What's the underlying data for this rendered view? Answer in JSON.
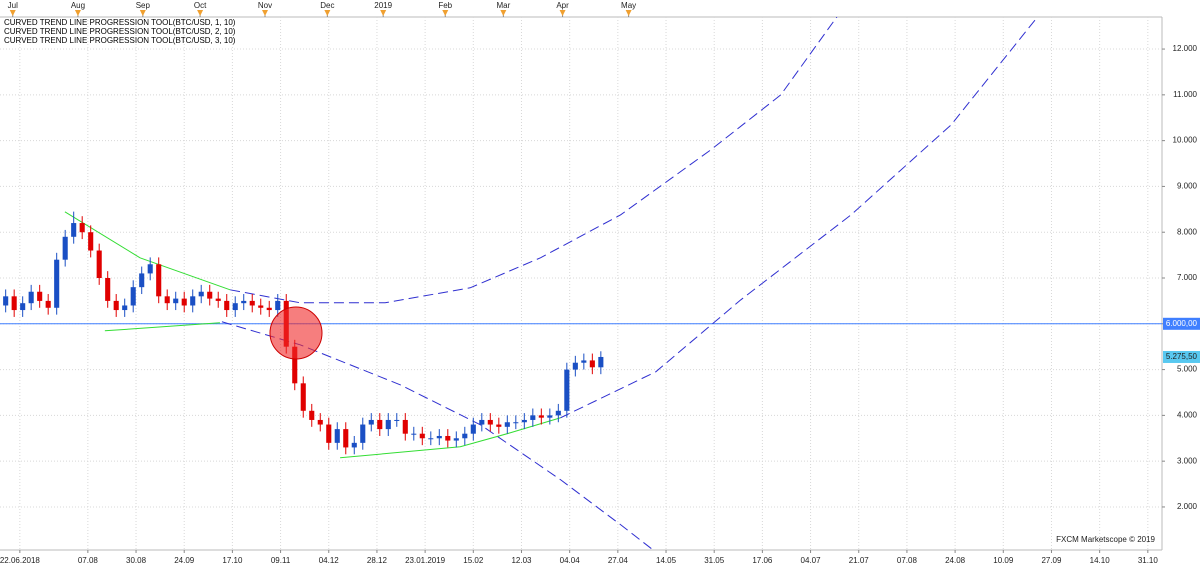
{
  "chart_data": {
    "type": "candlestick",
    "annotations": [
      "CURVED TREND LINE PROGRESSION TOOL(BTC/USD, 1, 10)",
      "CURVED TREND LINE PROGRESSION TOOL(BTC/USD, 2, 10)",
      "CURVED TREND LINE PROGRESSION TOOL(BTC/USD, 3, 10)"
    ],
    "watermark": "FXCM Marketscope © 2019",
    "xlim": [
      -14,
      396
    ],
    "ylim": [
      1060,
      12700
    ],
    "grid": true,
    "yticks": [
      {
        "value": 2000,
        "label": "2.000"
      },
      {
        "value": 3000,
        "label": "3.000"
      },
      {
        "value": 4000,
        "label": "4.000"
      },
      {
        "value": 5000,
        "label": "5.000"
      },
      {
        "value": 6000,
        "label": "6.000"
      },
      {
        "value": 7000,
        "label": "7.000"
      },
      {
        "value": 8000,
        "label": "8.000"
      },
      {
        "value": 9000,
        "label": "9.000"
      },
      {
        "value": 10000,
        "label": "10.000"
      },
      {
        "value": 11000,
        "label": "11.000"
      },
      {
        "value": 12000,
        "label": "12.000"
      }
    ],
    "xticks": [
      {
        "value": -7,
        "label": "22.06.2018"
      },
      {
        "value": 17,
        "label": "07.08"
      },
      {
        "value": 34,
        "label": "30.08"
      },
      {
        "value": 51,
        "label": "24.09"
      },
      {
        "value": 68,
        "label": "17.10"
      },
      {
        "value": 85,
        "label": "09.11"
      },
      {
        "value": 102,
        "label": "04.12"
      },
      {
        "value": 119,
        "label": "28.12"
      },
      {
        "value": 136,
        "label": "23.01.2019"
      },
      {
        "value": 153,
        "label": "15.02"
      },
      {
        "value": 170,
        "label": "12.03"
      },
      {
        "value": 187,
        "label": "04.04"
      },
      {
        "value": 204,
        "label": "27.04"
      },
      {
        "value": 221,
        "label": "14.05"
      },
      {
        "value": 238,
        "label": "31.05"
      },
      {
        "value": 255,
        "label": "17.06"
      },
      {
        "value": 272,
        "label": "04.07"
      },
      {
        "value": 289,
        "label": "21.07"
      },
      {
        "value": 306,
        "label": "07.08"
      },
      {
        "value": 323,
        "label": "24.08"
      },
      {
        "value": 340,
        "label": "10.09"
      },
      {
        "value": 357,
        "label": "27.09"
      },
      {
        "value": 374,
        "label": "14.10"
      },
      {
        "value": 391,
        "label": "31.10"
      }
    ],
    "top_ticks": [
      {
        "value": -9.5,
        "label": "Jul"
      },
      {
        "value": 13.5,
        "label": "Aug"
      },
      {
        "value": 36.4,
        "label": "Sep"
      },
      {
        "value": 56.6,
        "label": "Oct"
      },
      {
        "value": 79.5,
        "label": "Nov"
      },
      {
        "value": 101.5,
        "label": "Dec"
      },
      {
        "value": 121.2,
        "label": "2019"
      },
      {
        "value": 143.1,
        "label": "Feb"
      },
      {
        "value": 163.6,
        "label": "Mar"
      },
      {
        "value": 184.5,
        "label": "Apr"
      },
      {
        "value": 207.8,
        "label": "May"
      }
    ],
    "up_color": "#1a4fc4",
    "down_color": "#e00000",
    "x": [
      -12,
      -9,
      -6,
      -3,
      0,
      3,
      6,
      9,
      12,
      15,
      18,
      21,
      24,
      27,
      30,
      33,
      36,
      39,
      42,
      45,
      48,
      51,
      54,
      57,
      60,
      63,
      66,
      69,
      72,
      75,
      78,
      81,
      84,
      87,
      90,
      93,
      96,
      99,
      102,
      105,
      108,
      111,
      114,
      117,
      120,
      123,
      126,
      129,
      132,
      135,
      138,
      141,
      144,
      147,
      150,
      153,
      156,
      159,
      162,
      165,
      168,
      171,
      174,
      177,
      180,
      183,
      186,
      189,
      192,
      195,
      198
    ],
    "open": [
      6400,
      6600,
      6300,
      6450,
      6700,
      6500,
      6350,
      7400,
      7900,
      8200,
      8000,
      7600,
      7000,
      6500,
      6300,
      6400,
      6800,
      7100,
      7300,
      6600,
      6450,
      6550,
      6400,
      6600,
      6700,
      6550,
      6500,
      6300,
      6450,
      6500,
      6400,
      6350,
      6300,
      6500,
      5500,
      4700,
      4100,
      3900,
      3800,
      3400,
      3700,
      3300,
      3400,
      3800,
      3900,
      3700,
      3900,
      3900,
      3600,
      3600,
      3500,
      3500,
      3550,
      3450,
      3500,
      3600,
      3800,
      3900,
      3800,
      3750,
      3850,
      3850,
      3900,
      4000,
      3950,
      4000,
      4100,
      5000,
      5150,
      5200,
      5050
    ],
    "high": [
      6750,
      6750,
      6600,
      6850,
      6850,
      6650,
      7550,
      8050,
      8450,
      8350,
      8150,
      7750,
      7150,
      6650,
      6550,
      6950,
      7250,
      7450,
      7450,
      6750,
      6700,
      6700,
      6750,
      6850,
      6850,
      6700,
      6650,
      6600,
      6650,
      6650,
      6550,
      6500,
      6650,
      6650,
      5650,
      4850,
      4250,
      4050,
      3950,
      3850,
      3850,
      3550,
      3950,
      4050,
      4050,
      4050,
      4050,
      4050,
      3750,
      3750,
      3650,
      3700,
      3700,
      3650,
      3750,
      3950,
      4050,
      4050,
      3950,
      4000,
      4000,
      4050,
      4150,
      4150,
      4150,
      4250,
      5150,
      5300,
      5350,
      5350,
      5400
    ],
    "low": [
      6250,
      6150,
      6150,
      6300,
      6350,
      6200,
      6200,
      7250,
      7750,
      7850,
      7450,
      6850,
      6350,
      6150,
      6150,
      6250,
      6650,
      6950,
      6450,
      6300,
      6300,
      6250,
      6250,
      6450,
      6400,
      6350,
      6150,
      6150,
      6300,
      6250,
      6200,
      6150,
      6150,
      5350,
      4550,
      3950,
      3750,
      3650,
      3250,
      3250,
      3150,
      3150,
      3250,
      3650,
      3550,
      3550,
      3750,
      3450,
      3450,
      3350,
      3350,
      3350,
      3300,
      3300,
      3350,
      3450,
      3650,
      3650,
      3600,
      3600,
      3700,
      3700,
      3750,
      3800,
      3800,
      3850,
      3950,
      4850,
      5000,
      4900,
      4900
    ],
    "close": [
      6600,
      6300,
      6450,
      6700,
      6500,
      6350,
      7400,
      7900,
      8200,
      8000,
      7600,
      7000,
      6500,
      6300,
      6400,
      6800,
      7100,
      7300,
      6600,
      6450,
      6550,
      6400,
      6600,
      6700,
      6550,
      6500,
      6300,
      6450,
      6500,
      6400,
      6350,
      6300,
      6500,
      5500,
      4700,
      4100,
      3900,
      3800,
      3400,
      3700,
      3300,
      3400,
      3800,
      3900,
      3700,
      3900,
      3900,
      3600,
      3600,
      3500,
      3500,
      3550,
      3450,
      3500,
      3600,
      3800,
      3900,
      3800,
      3750,
      3850,
      3850,
      3900,
      4000,
      3950,
      4000,
      4100,
      5000,
      5150,
      5200,
      5050,
      5275.5
    ],
    "trend_lines": [
      {
        "color": "#33dd33",
        "dashed": false,
        "x": [
          8.9,
          35.4,
          67.2
        ],
        "y": [
          8445,
          7441,
          6742
        ]
      },
      {
        "color": "#33dd33",
        "dashed": false,
        "x": [
          23.0,
          63.6
        ],
        "y": [
          5847,
          6022
        ]
      },
      {
        "color": "#33dd33",
        "dashed": false,
        "x": [
          106.0,
          148.4,
          166.1,
          183.8
        ],
        "y": [
          3074,
          3314,
          3620,
          3948
        ]
      },
      {
        "color": "#2f2fd0",
        "dashed": true,
        "x": [
          67.2,
          91.9,
          121.9,
          151.9,
          176.7,
          205.0,
          236.8,
          261.5,
          285.6
        ],
        "y": [
          6742,
          6459,
          6459,
          6786,
          7441,
          8380,
          9799,
          11000,
          13074
        ]
      },
      {
        "color": "#2f2fd0",
        "dashed": true,
        "x": [
          64.3,
          91.9,
          127.2,
          155.5,
          183.8,
          205.0,
          220.9
        ],
        "y": [
          6044,
          5541,
          4668,
          3795,
          2594,
          1611,
          847
        ]
      },
      {
        "color": "#2f2fd0",
        "dashed": true,
        "x": [
          183.8,
          217.4,
          247.4,
          286.3,
          321.6,
          356.9
        ],
        "y": [
          3948,
          4952,
          6524,
          8380,
          10345,
          13074
        ]
      }
    ],
    "level_line": {
      "value": 6000,
      "label": "6.000,00",
      "color": "#3f7fff"
    },
    "last_price": {
      "value": 5275.5,
      "label": "5.275,50",
      "color": "#58c8f0"
    }
  }
}
